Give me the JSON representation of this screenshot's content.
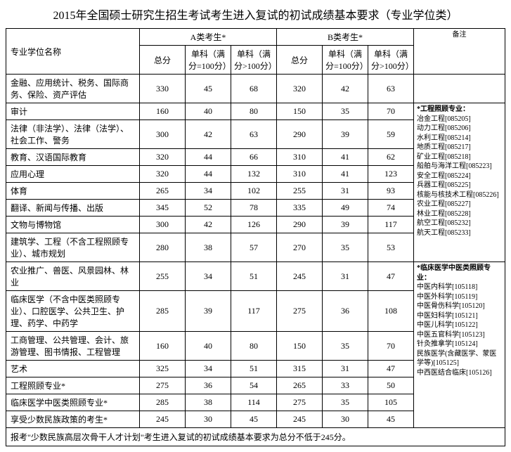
{
  "title": "2015年全国硕士研究生招生考试考生进入复试的初试成绩基本要求（专业学位类）",
  "headers": {
    "name": "专业学位名称",
    "groupA": "A类考生*",
    "groupB": "B类考生*",
    "total": "总分",
    "sub100": "单科（满分=100分）",
    "subOver100": "单科（满分>100分）",
    "note": "备注"
  },
  "rows": [
    {
      "name": "金融、应用统计、税务、国际商务、保险、资产评估",
      "a": [
        330,
        45,
        68
      ],
      "b": [
        320,
        42,
        63
      ]
    },
    {
      "name": "审计",
      "a": [
        160,
        40,
        80
      ],
      "b": [
        150,
        35,
        70
      ]
    },
    {
      "name": "法律（非法学）、法律（法学）、社会工作、警务",
      "a": [
        300,
        42,
        63
      ],
      "b": [
        290,
        39,
        59
      ]
    },
    {
      "name": "教育、汉语国际教育",
      "a": [
        320,
        44,
        66
      ],
      "b": [
        310,
        41,
        62
      ]
    },
    {
      "name": "应用心理",
      "a": [
        320,
        44,
        132
      ],
      "b": [
        310,
        41,
        123
      ]
    },
    {
      "name": "体育",
      "a": [
        265,
        34,
        102
      ],
      "b": [
        255,
        31,
        93
      ]
    },
    {
      "name": "翻译、新闻与传播、出版",
      "a": [
        345,
        52,
        78
      ],
      "b": [
        335,
        49,
        74
      ]
    },
    {
      "name": "文物与博物馆",
      "a": [
        300,
        42,
        126
      ],
      "b": [
        290,
        39,
        117
      ]
    },
    {
      "name": "建筑学、工程（不含工程照顾专业）、城市规划",
      "a": [
        280,
        38,
        57
      ],
      "b": [
        270,
        35,
        53
      ]
    },
    {
      "name": "农业推广、兽医、风景园林、林业",
      "a": [
        255,
        34,
        51
      ],
      "b": [
        245,
        31,
        47
      ]
    },
    {
      "name": "临床医学（不含中医类照顾专业）、口腔医学、公共卫生、护理、药学、中药学",
      "a": [
        285,
        39,
        117
      ],
      "b": [
        275,
        36,
        108
      ]
    },
    {
      "name": "工商管理、公共管理、会计、旅游管理、图书情报、工程管理",
      "a": [
        160,
        40,
        80
      ],
      "b": [
        150,
        35,
        70
      ]
    },
    {
      "name": "艺术",
      "a": [
        325,
        34,
        51
      ],
      "b": [
        315,
        31,
        47
      ]
    },
    {
      "name": "工程照顾专业*",
      "a": [
        275,
        36,
        54
      ],
      "b": [
        265,
        33,
        50
      ]
    },
    {
      "name": "临床医学中医类照顾专业*",
      "a": [
        285,
        38,
        114
      ],
      "b": [
        275,
        35,
        105
      ]
    },
    {
      "name": "享受少数民族政策的考生*",
      "a": [
        245,
        30,
        45
      ],
      "b": [
        245,
        30,
        45
      ]
    }
  ],
  "notes": {
    "block1": {
      "title": "*工程照顾专业：",
      "items": [
        "冶金工程[085205]",
        "动力工程[085206]",
        "水利工程[085214]",
        "地质工程[085217]",
        "矿业工程[085218]",
        "船舶与海洋工程[085223]",
        "安全工程[085224]",
        "兵器工程[085225]",
        "核能与核技术工程[085226]",
        "农业工程[085227]",
        "林业工程[085228]",
        "航空工程[085232]",
        "航天工程[085233]"
      ]
    },
    "block2": {
      "title": "*临床医学中医类照顾专业：",
      "items": [
        "中医内科学[105118]",
        "中医外科学[105119]",
        "中医骨伤科学[105120]",
        "中医妇科学[105121]",
        "中医儿科学[105122]",
        "中医五官科学[105123]",
        "针灸推拿学[105124]",
        "民族医学(含藏医学、蒙医学等)[105125]",
        "中西医结合临床[105126]"
      ]
    }
  },
  "footer": "报考\"少数民族高层次骨干人才计划\"考生进入复试的初试成绩基本要求为总分不低于245分。"
}
